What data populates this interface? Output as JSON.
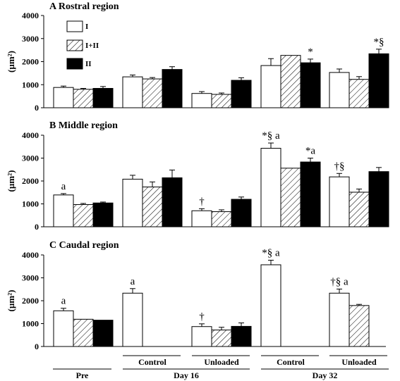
{
  "chart_data": {
    "type": "bar",
    "series_names": [
      "I",
      "I+II",
      "II"
    ],
    "series_fills": [
      "white",
      "hatch",
      "black"
    ],
    "ylabel": "(µm²)",
    "ylim": [
      0,
      4000
    ],
    "yticks": [
      0,
      1000,
      2000,
      3000,
      4000
    ],
    "legend_position": "top-left of panel A",
    "groups": [
      "Pre",
      "Day 16 Control",
      "Day 16 Unloaded",
      "Day 32 Control",
      "Day 32 Unloaded"
    ],
    "x_axis": {
      "row1": [
        "Control",
        "Unloaded",
        "Control",
        "Unloaded"
      ],
      "row2": [
        "Pre",
        "Day 16",
        "Day 32"
      ]
    },
    "panels": [
      {
        "letter": "A",
        "title": "Rostral region",
        "values": [
          [
            880,
            800,
            840
          ],
          [
            1340,
            1250,
            1660
          ],
          [
            620,
            580,
            1190
          ],
          [
            1830,
            2270,
            1950
          ],
          [
            1530,
            1230,
            2340
          ]
        ],
        "errors": [
          [
            60,
            40,
            80
          ],
          [
            80,
            60,
            120
          ],
          [
            80,
            60,
            110
          ],
          [
            300,
            0,
            160
          ],
          [
            150,
            120,
            200
          ]
        ],
        "annotations": [
          {
            "group": 3,
            "bar": 2,
            "text": "*"
          },
          {
            "group": 4,
            "bar": 2,
            "text": "*§"
          }
        ]
      },
      {
        "letter": "B",
        "title": "Middle region",
        "values": [
          [
            1390,
            970,
            1040
          ],
          [
            2080,
            1740,
            2140
          ],
          [
            700,
            660,
            1200
          ],
          [
            3430,
            2560,
            2830
          ],
          [
            2180,
            1510,
            2410
          ]
        ],
        "errors": [
          [
            60,
            50,
            40
          ],
          [
            170,
            220,
            340
          ],
          [
            90,
            80,
            100
          ],
          [
            230,
            0,
            170
          ],
          [
            150,
            140,
            180
          ]
        ],
        "annotations": [
          {
            "group": 0,
            "bar": 0,
            "text": "a"
          },
          {
            "group": 2,
            "bar": 0,
            "text": "†"
          },
          {
            "group": 3,
            "bar": 0,
            "text": "*§ a"
          },
          {
            "group": 3,
            "bar": 2,
            "text": "*a"
          },
          {
            "group": 4,
            "bar": 0,
            "text": "†§"
          }
        ]
      },
      {
        "letter": "C",
        "title": "Caudal region",
        "values": [
          [
            1560,
            1190,
            1150
          ],
          [
            2330,
            null,
            null
          ],
          [
            870,
            720,
            880
          ],
          [
            3570,
            null,
            null
          ],
          [
            2330,
            1790,
            null
          ]
        ],
        "errors": [
          [
            110,
            0,
            0
          ],
          [
            200,
            0,
            0
          ],
          [
            120,
            120,
            150
          ],
          [
            200,
            0,
            0
          ],
          [
            180,
            50,
            0
          ]
        ],
        "annotations": [
          {
            "group": 0,
            "bar": 0,
            "text": "a"
          },
          {
            "group": 1,
            "bar": 0,
            "text": "a"
          },
          {
            "group": 2,
            "bar": 0,
            "text": "†"
          },
          {
            "group": 3,
            "bar": 0,
            "text": "*§ a"
          },
          {
            "group": 4,
            "bar": 0,
            "text": "†§ a"
          }
        ]
      }
    ]
  }
}
